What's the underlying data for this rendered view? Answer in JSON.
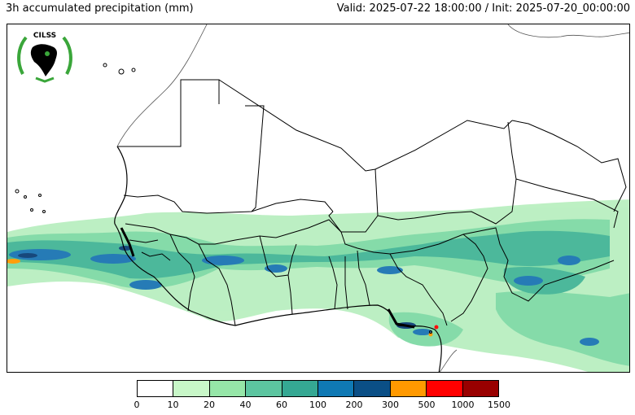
{
  "header": {
    "title": "3h accumulated precipitation (mm)",
    "valid_init": "Valid: 2025-07-22 18:00:00 / Init: 2025-07-20_00:00:00"
  },
  "logo": {
    "text": "CILSS"
  },
  "colorbar": {
    "ticks": [
      "0",
      "10",
      "20",
      "40",
      "60",
      "100",
      "200",
      "300",
      "500",
      "1000",
      "1500"
    ],
    "colors": [
      "#ffffff",
      "#c8f7c8",
      "#96e6a8",
      "#5cc5a0",
      "#35a893",
      "#0f79b4",
      "#0b4f86",
      "#ff9900",
      "#ff0000",
      "#990000"
    ]
  },
  "colors": {
    "light_green": "#b9efc0",
    "mid_green": "#7fdaa5",
    "teal": "#43b596",
    "blue": "#1b74b3",
    "dark_blue": "#0b3f76",
    "orange": "#ff9900",
    "red": "#ff0000"
  }
}
